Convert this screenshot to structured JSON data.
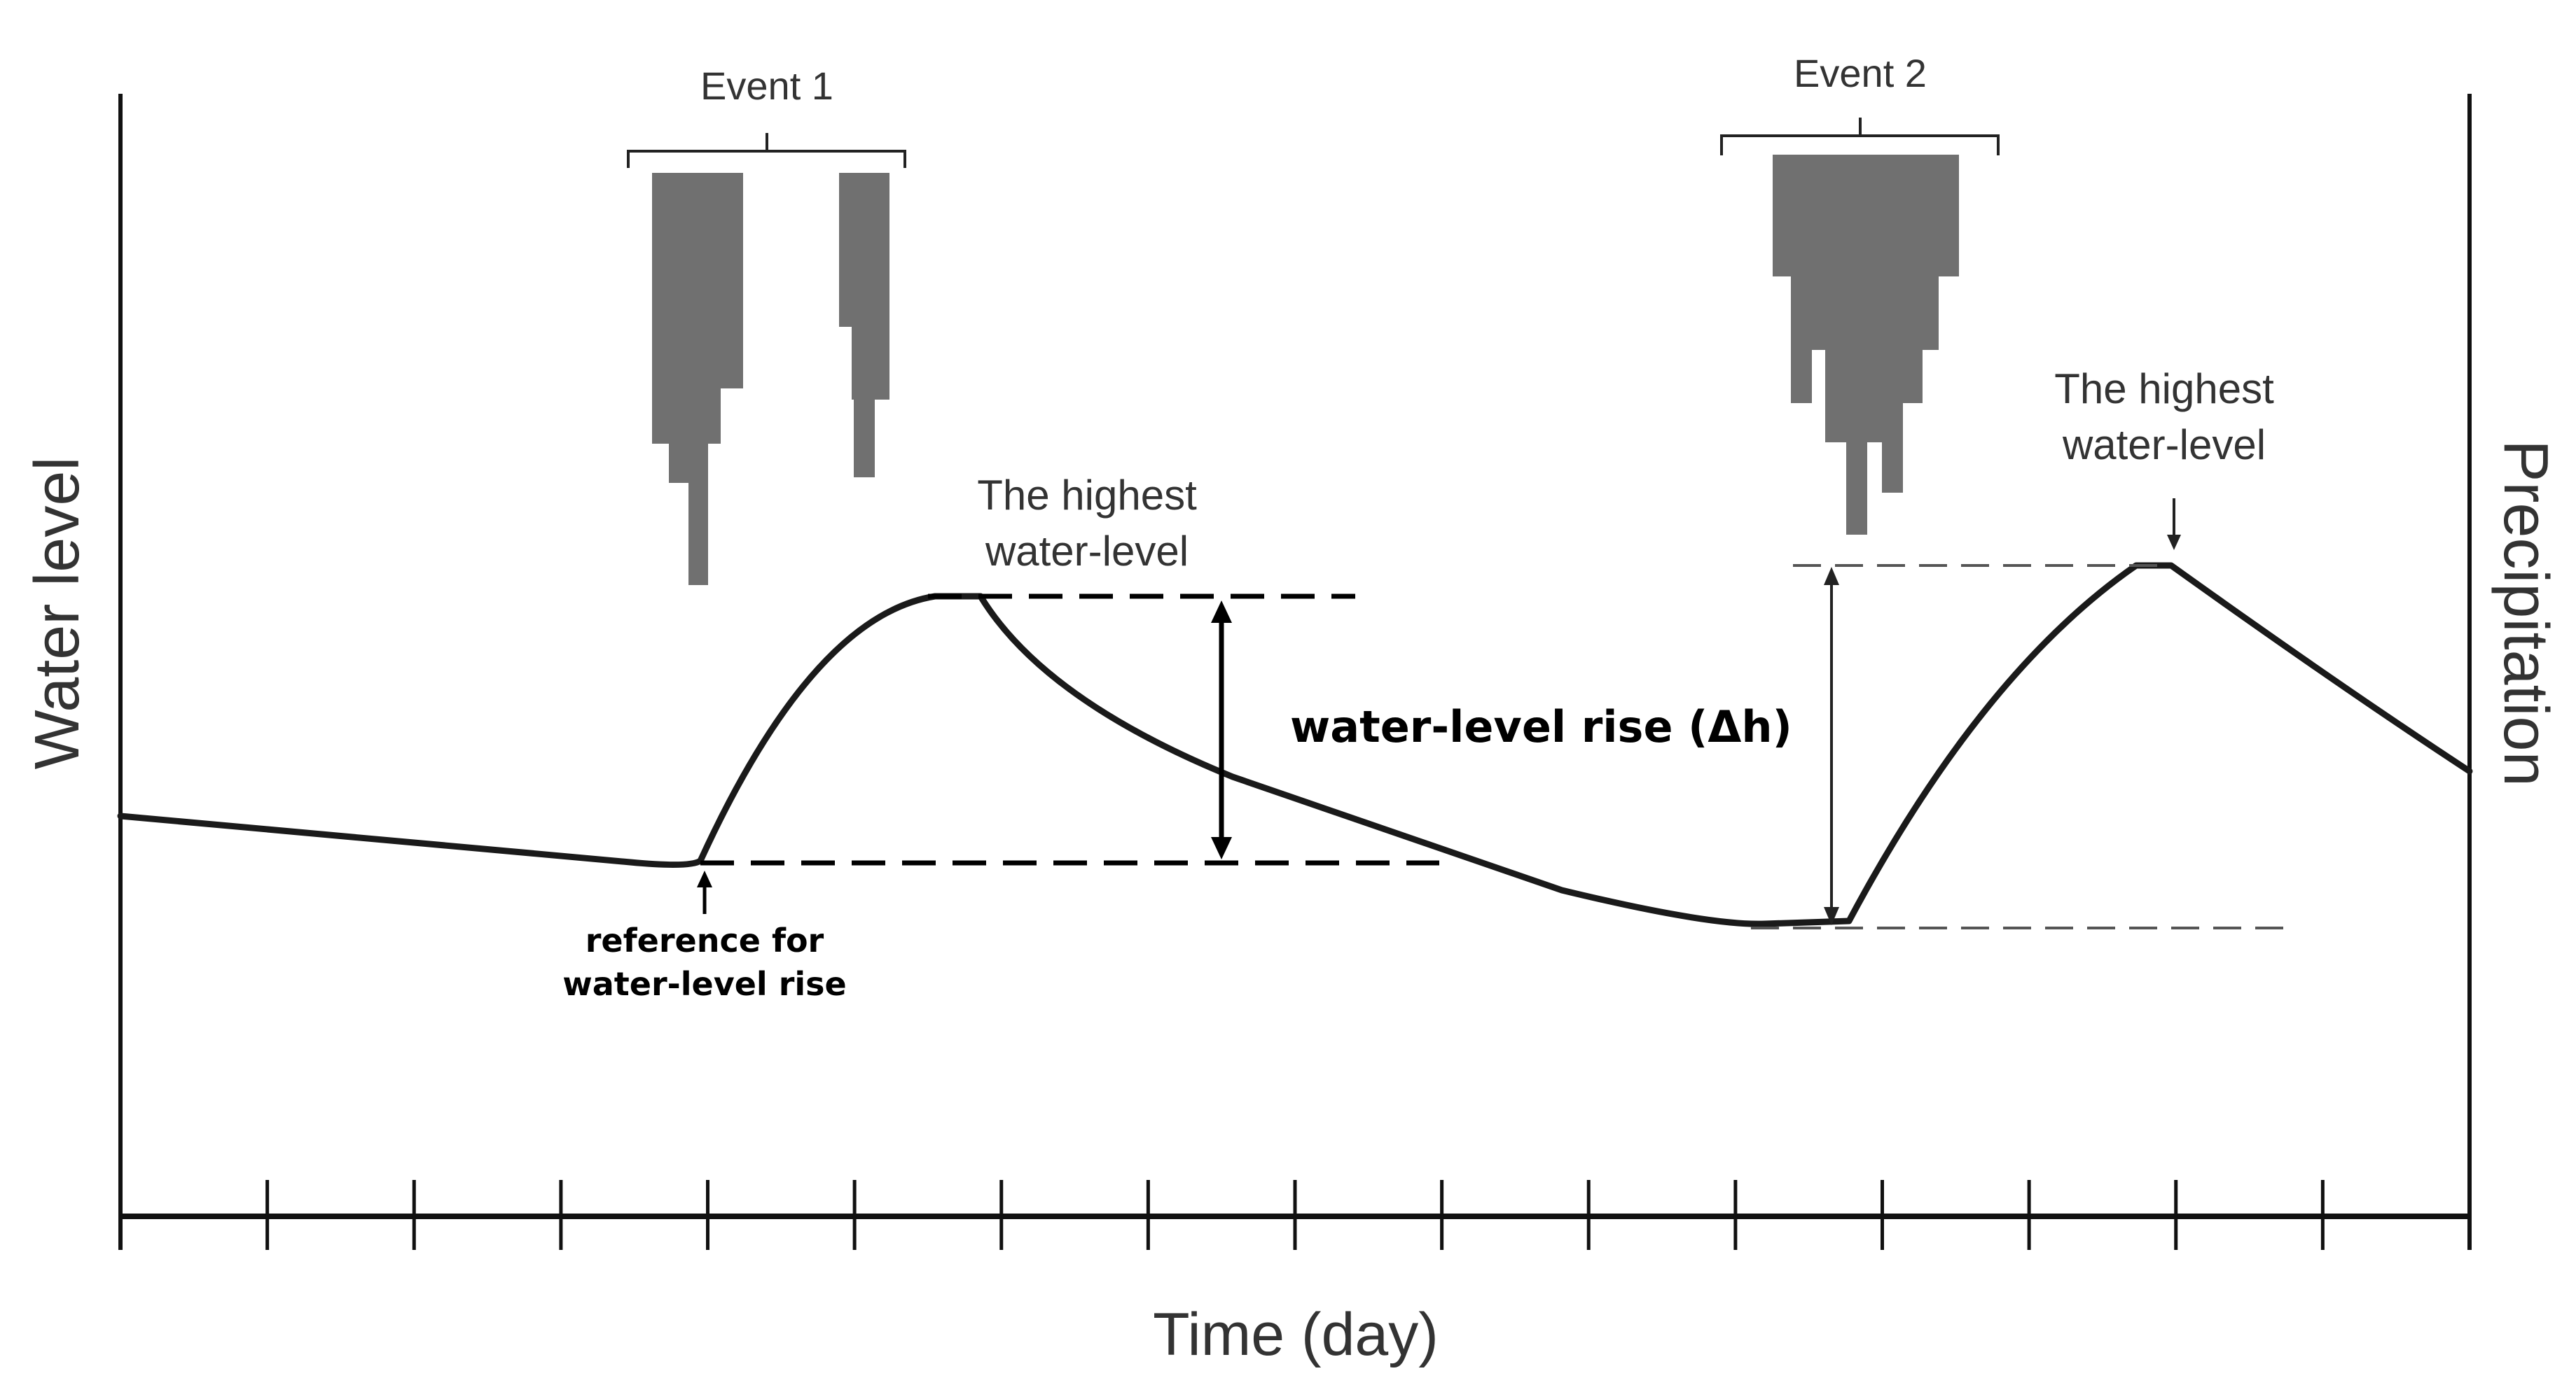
{
  "diagram": {
    "axis_left_label": "Water level",
    "axis_right_label": "Precipitation",
    "axis_bottom_label": "Time (day)",
    "event1_label": "Event 1",
    "event2_label": "Event 2",
    "peak1_label_line1": "The highest",
    "peak1_label_line2": "water-level",
    "peak2_label_line1": "The highest",
    "peak2_label_line2": "water-level",
    "rise_label": "water-level rise (Δh)",
    "reference_label_line1": "reference for",
    "reference_label_line2": "water-level rise",
    "tick_count": 17
  },
  "colors": {
    "curve": "#1a1a1a",
    "axis": "#111111",
    "rain_bars": "#707070",
    "label_text": "#333333",
    "bold_text": "#000000",
    "background": "#ffffff"
  }
}
